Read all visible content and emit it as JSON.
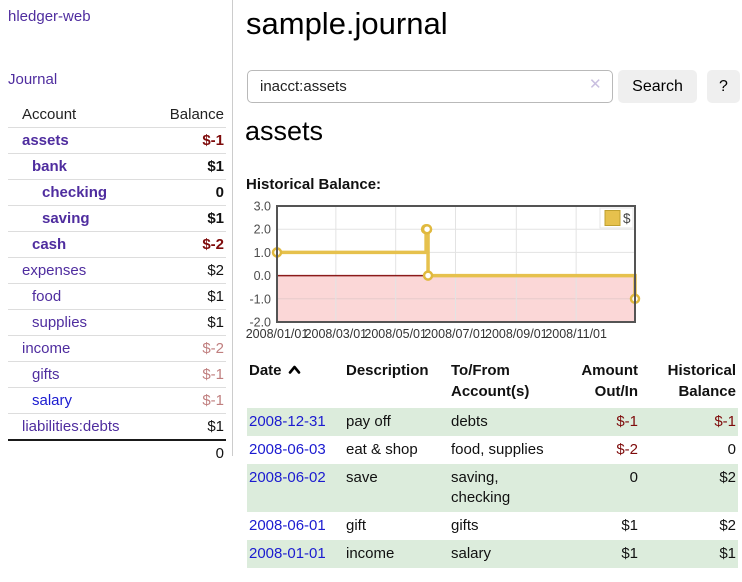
{
  "colors": {
    "link_purple": "#4f2d9f",
    "link_blue": "#1b1bd0",
    "negative_dark": "#7e0b0b",
    "negative_light": "#c07f7f",
    "row_green": "#dcecdc",
    "chart_line_gold": "#e6c14d",
    "chart_marker_stroke": "#e0b93e",
    "chart_fill_pink": "#fbd7d7",
    "chart_zero_red": "#8b1a1a",
    "chart_border_gray": "#545454",
    "chart_grid_gray": "#e3e3e3"
  },
  "sidebar": {
    "brand": "hledger-web",
    "nav_journal": "Journal",
    "header": {
      "account": "Account",
      "balance": "Balance"
    },
    "accounts": [
      {
        "name": "assets",
        "depth": 0,
        "bold": true,
        "balance": "$-1",
        "balance_class": "neg-dark"
      },
      {
        "name": "bank",
        "depth": 1,
        "bold": true,
        "balance": "$1",
        "balance_class": ""
      },
      {
        "name": "checking",
        "depth": 2,
        "bold": true,
        "balance": "0",
        "balance_class": ""
      },
      {
        "name": "saving",
        "depth": 2,
        "bold": true,
        "balance": "$1",
        "balance_class": ""
      },
      {
        "name": "cash",
        "depth": 1,
        "bold": true,
        "balance": "$-2",
        "balance_class": "neg-dark"
      },
      {
        "name": "expenses",
        "depth": 0,
        "bold": false,
        "balance": "$2",
        "balance_class": ""
      },
      {
        "name": "food",
        "depth": 1,
        "bold": false,
        "balance": "$1",
        "balance_class": ""
      },
      {
        "name": "supplies",
        "depth": 1,
        "bold": false,
        "balance": "$1",
        "balance_class": ""
      },
      {
        "name": "income",
        "depth": 0,
        "bold": false,
        "balance": "$-2",
        "balance_class": "neg-light"
      },
      {
        "name": "gifts",
        "depth": 1,
        "bold": false,
        "balance": "$-1",
        "balance_class": "neg-light"
      },
      {
        "name": "salary",
        "depth": 1,
        "bold": false,
        "balance": "$-1",
        "balance_class": "neg-light",
        "name_class": "blue"
      },
      {
        "name": "liabilities:debts",
        "depth": 0,
        "bold": false,
        "balance": "$1",
        "balance_class": ""
      }
    ],
    "total": "0"
  },
  "main": {
    "title": "sample.journal",
    "search": {
      "value": "inacct:assets",
      "clear_icon": "✕",
      "button_label": "Search",
      "help_label": "?"
    },
    "account_heading": "assets",
    "chart_label": "Historical Balance:"
  },
  "chart_data": {
    "type": "line",
    "title": "Historical Balance of assets",
    "step": true,
    "series": [
      {
        "name": "$",
        "points": [
          [
            "2008-01-01",
            1
          ],
          [
            "2008-06-01",
            2
          ],
          [
            "2008-06-02",
            2
          ],
          [
            "2008-06-03",
            0
          ],
          [
            "2008-12-31",
            -1
          ]
        ]
      }
    ],
    "x_range": [
      "2008-01-01",
      "2008-12-31"
    ],
    "ylim": [
      -2,
      3
    ],
    "y_ticks": [
      {
        "value": 3,
        "label": "3.0"
      },
      {
        "value": 2,
        "label": "2.0"
      },
      {
        "value": 1,
        "label": "1.0"
      },
      {
        "value": 0,
        "label": "0.0"
      },
      {
        "value": -1,
        "label": "-1.0"
      },
      {
        "value": -2,
        "label": "-2.0"
      }
    ],
    "x_ticks": [
      {
        "date": "2008-01-01",
        "label": "2008/01/01"
      },
      {
        "date": "2008-03-01",
        "label": "2008/03/01"
      },
      {
        "date": "2008-05-01",
        "label": "2008/05/01"
      },
      {
        "date": "2008-07-01",
        "label": "2008/07/01"
      },
      {
        "date": "2008-09-01",
        "label": "2008/09/01"
      },
      {
        "date": "2008-11-01",
        "label": "2008/11/01"
      }
    ],
    "legend": {
      "label": "$",
      "position": "top-right"
    },
    "grid": true,
    "negative_region_shaded": true,
    "zero_line": true
  },
  "table": {
    "sort_icon": "chevron-up",
    "columns": [
      {
        "line1": "Date",
        "line2": "",
        "align": "left"
      },
      {
        "line1": "Description",
        "line2": "",
        "align": "left"
      },
      {
        "line1": "To/From",
        "line2": "Account(s)",
        "align": "left"
      },
      {
        "line1": "Amount",
        "line2": "Out/In",
        "align": "right"
      },
      {
        "line1": "Historical",
        "line2": "Balance",
        "align": "right"
      }
    ],
    "rows": [
      {
        "date": "2008-12-31",
        "description": "pay off",
        "accounts": "debts",
        "amount": "$-1",
        "amount_class": "neg",
        "balance": "$-1",
        "balance_class": "neg",
        "stripe": true
      },
      {
        "date": "2008-06-03",
        "description": "eat & shop",
        "accounts": "food, supplies",
        "amount": "$-2",
        "amount_class": "neg",
        "balance": "0",
        "balance_class": "",
        "stripe": false
      },
      {
        "date": "2008-06-02",
        "description": "save",
        "accounts": "saving, checking",
        "amount": "0",
        "amount_class": "",
        "balance": "$2",
        "balance_class": "",
        "stripe": true
      },
      {
        "date": "2008-06-01",
        "description": "gift",
        "accounts": "gifts",
        "amount": "$1",
        "amount_class": "",
        "balance": "$2",
        "balance_class": "",
        "stripe": false
      },
      {
        "date": "2008-01-01",
        "description": "income",
        "accounts": "salary",
        "amount": "$1",
        "amount_class": "",
        "balance": "$1",
        "balance_class": "",
        "stripe": true
      }
    ]
  }
}
